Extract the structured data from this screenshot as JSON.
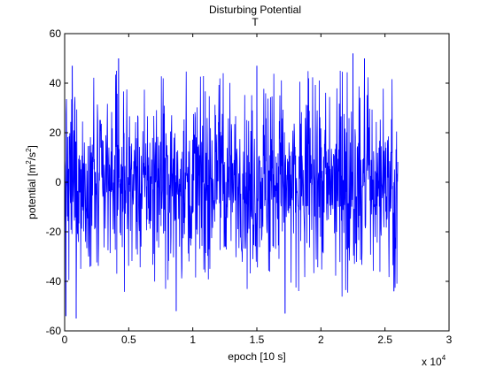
{
  "chart_data": {
    "type": "line",
    "title": "Disturbing Potential",
    "subtitle": "T",
    "xlabel": "epoch [10 s]",
    "ylabel_main": "potential [m",
    "ylabel_sup1": "2",
    "ylabel_mid": "/s",
    "ylabel_sup2": "2",
    "ylabel_end": "]",
    "x_exponent_base": "x 10",
    "x_exponent_power": "4",
    "xlim": [
      0,
      3
    ],
    "ylim": [
      -60,
      60
    ],
    "x_ticks": [
      0,
      0.5,
      1,
      1.5,
      2,
      2.5,
      3
    ],
    "x_tick_labels": [
      "0",
      "0.5",
      "1",
      "1.5",
      "2",
      "2.5",
      "3"
    ],
    "y_ticks": [
      -60,
      -40,
      -20,
      0,
      20,
      40,
      60
    ],
    "y_tick_labels": [
      "-60",
      "-40",
      "-20",
      "0",
      "20",
      "40",
      "60"
    ],
    "grid": false,
    "series": [
      {
        "color": "#0000ff",
        "x_start": 0,
        "x_end": 2.6,
        "peaks": [
          {
            "x": 0.01,
            "y": -54
          },
          {
            "x": 0.06,
            "y": 47
          },
          {
            "x": 0.09,
            "y": -55
          },
          {
            "x": 0.42,
            "y": 50
          },
          {
            "x": 0.87,
            "y": -52
          },
          {
            "x": 1.5,
            "y": 47
          },
          {
            "x": 1.72,
            "y": -53
          },
          {
            "x": 2.25,
            "y": 52
          },
          {
            "x": 2.34,
            "y": 50
          },
          {
            "x": 2.57,
            "y": -44
          }
        ],
        "typical_range": [
          -20,
          20
        ]
      }
    ]
  }
}
